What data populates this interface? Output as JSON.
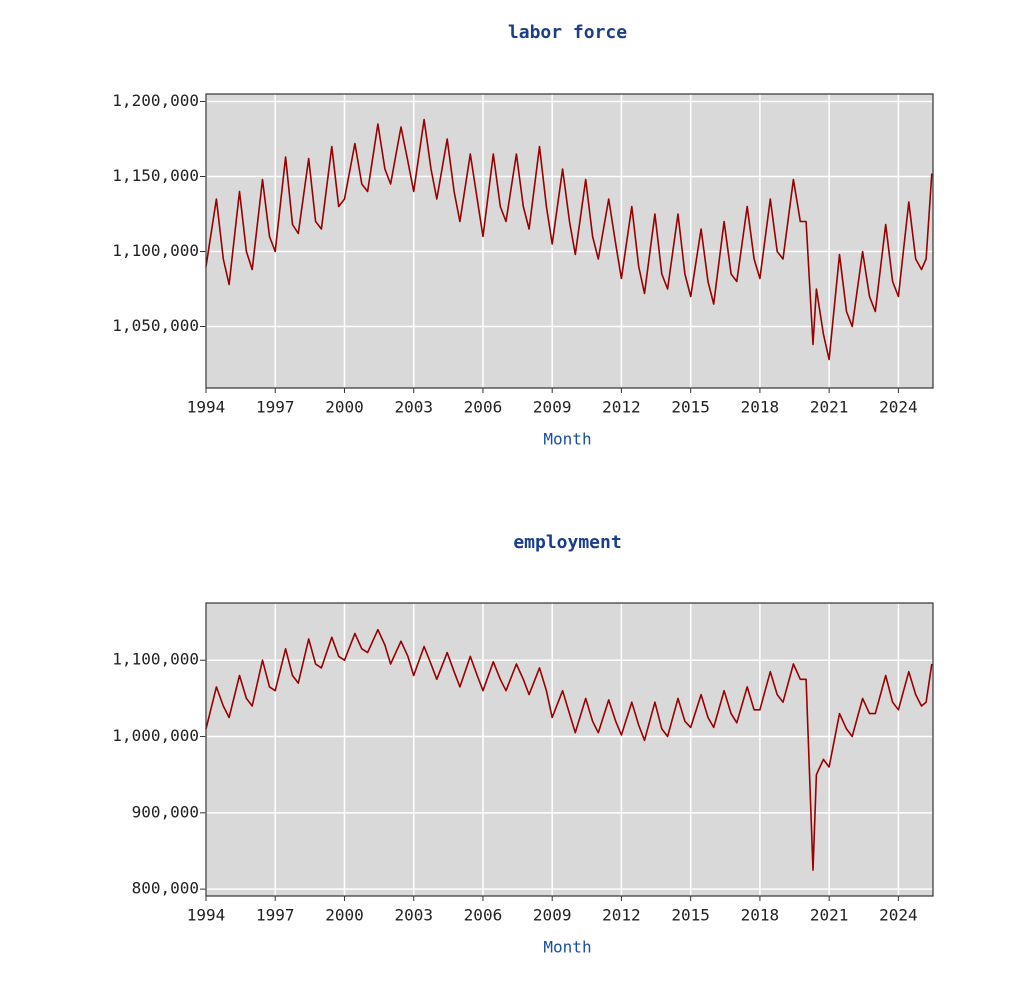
{
  "chart_data": [
    {
      "type": "line",
      "title": "labor force",
      "x_label": "Month",
      "color": "#990000",
      "grid": true,
      "xlim": [
        1994,
        2025.5
      ],
      "xticks": [
        1994,
        1997,
        2000,
        2003,
        2006,
        2009,
        2012,
        2015,
        2018,
        2021,
        2024
      ],
      "ylim": [
        1009000,
        1205000
      ],
      "yticks": [
        {
          "value": 1050000,
          "label": "1,050,000"
        },
        {
          "value": 1100000,
          "label": "1,100,000"
        },
        {
          "value": 1150000,
          "label": "1,150,000"
        },
        {
          "value": 1200000,
          "label": "1,200,000"
        }
      ],
      "x": [
        1994,
        1994.45,
        1994.75,
        1995,
        1995.45,
        1995.75,
        1996,
        1996.45,
        1996.75,
        1997,
        1997.45,
        1997.75,
        1998,
        1998.45,
        1998.75,
        1999,
        1999.45,
        1999.75,
        2000,
        2000.45,
        2000.75,
        2001,
        2001.45,
        2001.75,
        2002,
        2002.45,
        2002.75,
        2003,
        2003.45,
        2003.75,
        2004,
        2004.45,
        2004.75,
        2005,
        2005.45,
        2005.75,
        2006,
        2006.45,
        2006.75,
        2007,
        2007.45,
        2007.75,
        2008,
        2008.45,
        2008.75,
        2009,
        2009.45,
        2009.75,
        2010,
        2010.45,
        2010.75,
        2011,
        2011.45,
        2011.75,
        2012,
        2012.45,
        2012.75,
        2013,
        2013.45,
        2013.75,
        2014,
        2014.45,
        2014.75,
        2015,
        2015.45,
        2015.75,
        2016,
        2016.45,
        2016.75,
        2017,
        2017.45,
        2017.75,
        2018,
        2018.45,
        2018.75,
        2019,
        2019.45,
        2019.75,
        2020,
        2020.3,
        2020.45,
        2020.75,
        2021,
        2021.45,
        2021.75,
        2022,
        2022.45,
        2022.75,
        2023,
        2023.45,
        2023.75,
        2024,
        2024.45,
        2024.75,
        2025,
        2025.2,
        2025.45
      ],
      "series": [
        {
          "name": "labor force",
          "color": "#990000",
          "values": [
            1090000,
            1135000,
            1095000,
            1078000,
            1140000,
            1100000,
            1088000,
            1148000,
            1110000,
            1100000,
            1163000,
            1118000,
            1112000,
            1162000,
            1120000,
            1115000,
            1170000,
            1130000,
            1135000,
            1172000,
            1145000,
            1140000,
            1185000,
            1155000,
            1145000,
            1183000,
            1160000,
            1140000,
            1188000,
            1155000,
            1135000,
            1175000,
            1140000,
            1120000,
            1165000,
            1135000,
            1110000,
            1165000,
            1130000,
            1120000,
            1165000,
            1130000,
            1115000,
            1170000,
            1130000,
            1105000,
            1155000,
            1120000,
            1098000,
            1148000,
            1110000,
            1095000,
            1135000,
            1105000,
            1082000,
            1130000,
            1090000,
            1072000,
            1125000,
            1085000,
            1075000,
            1125000,
            1085000,
            1070000,
            1115000,
            1080000,
            1065000,
            1120000,
            1085000,
            1080000,
            1130000,
            1095000,
            1082000,
            1135000,
            1100000,
            1095000,
            1148000,
            1120000,
            1120000,
            1038000,
            1075000,
            1045000,
            1028000,
            1098000,
            1060000,
            1050000,
            1100000,
            1070000,
            1060000,
            1118000,
            1080000,
            1070000,
            1133000,
            1095000,
            1088000,
            1095000,
            1152000
          ]
        }
      ]
    },
    {
      "type": "line",
      "title": "employment",
      "x_label": "Month",
      "color": "#990000",
      "grid": true,
      "xlim": [
        1994,
        2025.5
      ],
      "xticks": [
        1994,
        1997,
        2000,
        2003,
        2006,
        2009,
        2012,
        2015,
        2018,
        2021,
        2024
      ],
      "ylim": [
        791000,
        1175000
      ],
      "yticks": [
        {
          "value": 800000,
          "label": "800,000"
        },
        {
          "value": 900000,
          "label": "900,000"
        },
        {
          "value": 1000000,
          "label": "1,000,000"
        },
        {
          "value": 1100000,
          "label": "1,100,000"
        }
      ],
      "x": [
        1994,
        1994.45,
        1994.75,
        1995,
        1995.45,
        1995.75,
        1996,
        1996.45,
        1996.75,
        1997,
        1997.45,
        1997.75,
        1998,
        1998.45,
        1998.75,
        1999,
        1999.45,
        1999.75,
        2000,
        2000.45,
        2000.75,
        2001,
        2001.45,
        2001.75,
        2002,
        2002.45,
        2002.75,
        2003,
        2003.45,
        2003.75,
        2004,
        2004.45,
        2004.75,
        2005,
        2005.45,
        2005.75,
        2006,
        2006.45,
        2006.75,
        2007,
        2007.45,
        2007.75,
        2008,
        2008.45,
        2008.75,
        2009,
        2009.45,
        2009.75,
        2010,
        2010.45,
        2010.75,
        2011,
        2011.45,
        2011.75,
        2012,
        2012.45,
        2012.75,
        2013,
        2013.45,
        2013.75,
        2014,
        2014.45,
        2014.75,
        2015,
        2015.45,
        2015.75,
        2016,
        2016.45,
        2016.75,
        2017,
        2017.45,
        2017.75,
        2018,
        2018.45,
        2018.75,
        2019,
        2019.45,
        2019.75,
        2020,
        2020.3,
        2020.45,
        2020.75,
        2021,
        2021.45,
        2021.75,
        2022,
        2022.45,
        2022.75,
        2023,
        2023.45,
        2023.75,
        2024,
        2024.45,
        2024.75,
        2025,
        2025.2,
        2025.45
      ],
      "series": [
        {
          "name": "employment",
          "color": "#990000",
          "values": [
            1010000,
            1065000,
            1040000,
            1025000,
            1080000,
            1050000,
            1040000,
            1100000,
            1065000,
            1060000,
            1115000,
            1080000,
            1070000,
            1128000,
            1095000,
            1090000,
            1130000,
            1105000,
            1100000,
            1135000,
            1115000,
            1110000,
            1140000,
            1120000,
            1095000,
            1125000,
            1105000,
            1080000,
            1118000,
            1095000,
            1075000,
            1110000,
            1085000,
            1065000,
            1105000,
            1080000,
            1060000,
            1098000,
            1075000,
            1060000,
            1095000,
            1075000,
            1055000,
            1090000,
            1060000,
            1025000,
            1060000,
            1030000,
            1005000,
            1050000,
            1020000,
            1005000,
            1048000,
            1020000,
            1002000,
            1045000,
            1015000,
            995000,
            1045000,
            1010000,
            1000000,
            1050000,
            1020000,
            1012000,
            1055000,
            1025000,
            1012000,
            1060000,
            1030000,
            1018000,
            1065000,
            1035000,
            1035000,
            1085000,
            1055000,
            1045000,
            1095000,
            1075000,
            1075000,
            825000,
            950000,
            970000,
            960000,
            1030000,
            1010000,
            1000000,
            1050000,
            1030000,
            1030000,
            1080000,
            1045000,
            1035000,
            1085000,
            1055000,
            1040000,
            1045000,
            1095000
          ]
        }
      ]
    }
  ]
}
